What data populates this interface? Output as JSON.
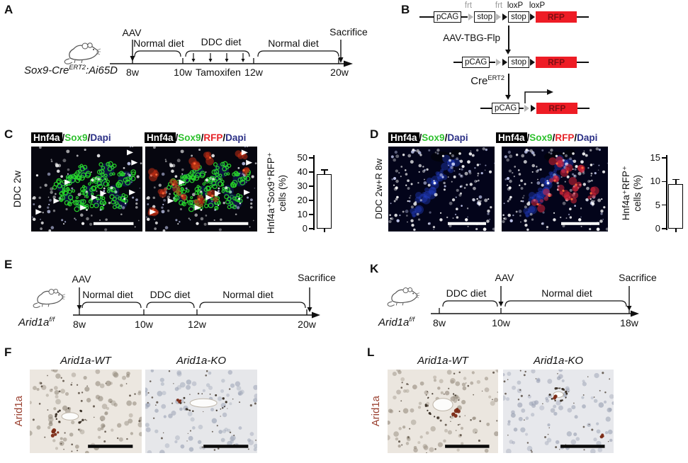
{
  "figure": {
    "colors": {
      "sox9_green": "#2fc12f",
      "rfp_red": "#e62328",
      "dapi_blue": "#2b3086",
      "construct_red": "#ee1c25",
      "arid1a_brown": "#9c4434"
    },
    "panels": {
      "A": {
        "label": "A",
        "genotype_base": "Sox9-Cre",
        "genotype_sup": "ERT2",
        "genotype_rest": ":Ai65D",
        "aav": "AAV",
        "seg1": "Normal diet",
        "seg2": "DDC diet",
        "seg3": "Normal diet",
        "sacrifice": "Sacrifice",
        "tamoxifen": "Tamoxifen",
        "w1": "8w",
        "w2": "10w",
        "w3": "12w",
        "w4": "20w"
      },
      "B": {
        "label": "B",
        "frt1": "frt",
        "frt2": "frt",
        "loxp1": "loxP",
        "loxp2": "loxP",
        "pcag": "pCAG",
        "stop": "stop",
        "rfp": "RFP",
        "step1": "AAV-TBG-Flp",
        "step2_base": "Cre",
        "step2_sup": "ERT2"
      },
      "C": {
        "label": "C",
        "side": "DDC 2w",
        "title1": [
          "Hnf4a",
          "/",
          "Sox9",
          "/",
          "Dapi"
        ],
        "title2": [
          "Hnf4a",
          "/",
          "Sox9",
          "/",
          "RFP",
          "/",
          "Dapi"
        ]
      },
      "D": {
        "label": "D",
        "side": "DDC 2w+R 8w",
        "title1": [
          "Hnf4a",
          "/",
          "Sox9",
          "/",
          "Dapi"
        ],
        "title2": [
          "Hnf4a",
          "/",
          "Sox9",
          "/",
          "RFP",
          "/",
          "Dapi"
        ]
      },
      "E": {
        "label": "E",
        "genotype_base": "Arid1a",
        "genotype_sup": "f/f",
        "aav": "AAV",
        "seg1": "Normal diet",
        "seg2": "DDC diet",
        "seg3": "Normal diet",
        "sacrifice": "Sacrifice",
        "w1": "8w",
        "w2": "10w",
        "w3": "12w",
        "w4": "20w"
      },
      "F": {
        "label": "F",
        "side": "Arid1a",
        "title_wt": "Arid1a-WT",
        "title_ko": "Arid1a-KO"
      },
      "K": {
        "label": "K",
        "genotype_base": "Arid1a",
        "genotype_sup": "f/f",
        "aav": "AAV",
        "seg1": "DDC diet",
        "seg2": "Normal diet",
        "sacrifice": "Sacrifice",
        "w1": "8w",
        "w2": "10w",
        "w3": "18w"
      },
      "L": {
        "label": "L",
        "side": "Arid1a",
        "title_wt": "Arid1a-WT",
        "title_ko": "Arid1a-KO"
      }
    }
  },
  "chart_data": [
    {
      "id": "panelC_bar",
      "type": "bar",
      "categories": [
        "DDC 2w"
      ],
      "values": [
        38.5
      ],
      "errors": [
        3
      ],
      "ylabel_line1": "Hnf4a⁺Sox9⁺RFP⁺",
      "ylabel_line2": "cells (%)",
      "ylim": [
        0,
        50
      ],
      "yticks": [
        0,
        10,
        20,
        30,
        40,
        50
      ],
      "bar_fill": "#ffffff",
      "bar_stroke": "#000000",
      "grid": false,
      "legend": false
    },
    {
      "id": "panelD_bar",
      "type": "bar",
      "categories": [
        "DDC 2w+R 8w"
      ],
      "values": [
        9.5
      ],
      "errors": [
        0.9
      ],
      "ylabel_line1": "Hnf4a⁺RFP⁺",
      "ylabel_line2": "cells (%)",
      "ylim": [
        0,
        15
      ],
      "yticks": [
        0,
        5,
        10,
        15
      ],
      "bar_fill": "#ffffff",
      "bar_stroke": "#000000",
      "grid": false,
      "legend": false
    }
  ]
}
